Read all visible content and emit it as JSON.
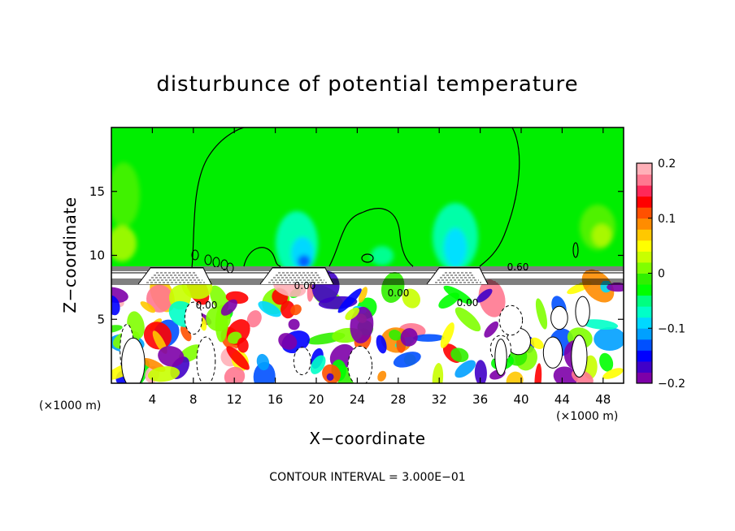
{
  "chart_data": {
    "type": "heatmap",
    "title": "disturbunce of potential temperature",
    "xlabel": "X−coordinate",
    "ylabel": "Z−coordinate",
    "x_unit": "(×1000 m)",
    "y_unit": "(×1000 m)",
    "xlim": [
      0,
      50
    ],
    "ylim": [
      0,
      20
    ],
    "x_ticks": [
      4,
      8,
      12,
      16,
      20,
      24,
      28,
      32,
      36,
      40,
      44,
      48
    ],
    "x_tick_labels": [
      "4",
      "8",
      "12",
      "16",
      "20",
      "24",
      "28",
      "32",
      "36",
      "40",
      "44",
      "48"
    ],
    "y_ticks": [
      5,
      10,
      15
    ],
    "y_tick_labels": [
      "5",
      "10",
      "15"
    ],
    "colorbar": {
      "min": -0.2,
      "max": 0.2,
      "tick_labels": [
        "0.2",
        "0.1",
        "0",
        "−0.1",
        "−0.2"
      ],
      "tick_values": [
        0.2,
        0.1,
        0,
        -0.1,
        -0.2
      ],
      "colors": [
        "#7d00a8",
        "#4000c8",
        "#0000ff",
        "#0050ff",
        "#00a0ff",
        "#00d8ff",
        "#00ffc8",
        "#00ff80",
        "#00ff00",
        "#30f000",
        "#80ff00",
        "#c8ff00",
        "#ffff00",
        "#ffc800",
        "#ff8c00",
        "#ff5000",
        "#ff0000",
        "#ff2858",
        "#ff7890",
        "#ffb0b8"
      ]
    },
    "contour_labels": [
      "0.00",
      "0.00",
      "0.00",
      "0.60",
      "0.00"
    ],
    "annotation": "CONTOUR INTERVAL = 3.000E−01",
    "grid": false,
    "legend": "colorbar-right"
  }
}
